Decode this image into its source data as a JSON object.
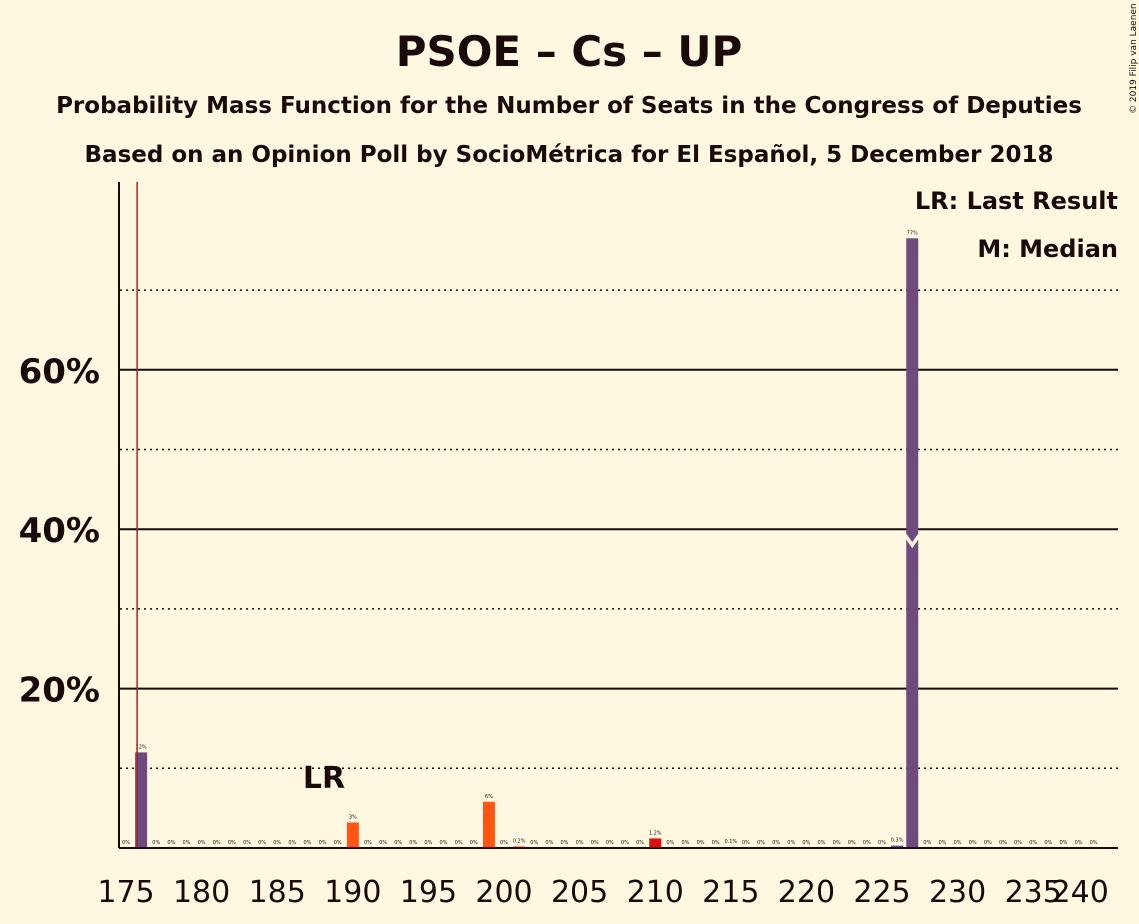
{
  "colors": {
    "background": "#FFF8E1",
    "text": "#1a0a0a",
    "bar_majority": "#6E4A7E",
    "bar_orange": "#FF5511",
    "bar_red": "#E01010",
    "last_result_line": "#B02020"
  },
  "chart_data": {
    "type": "bar",
    "title": "PSOE – Cs – UP",
    "subtitle1": "Probability Mass Function for the Number of Seats in the Congress of Deputies",
    "subtitle2": "Based on an Opinion Poll by SocioMétrica for El Español, 5 December 2018",
    "copyright": "© 2019 Filip van Laenen",
    "legend": {
      "last_result": "LR: Last Result",
      "median": "M: Median",
      "placement": "top-right"
    },
    "xlim": [
      175,
      240
    ],
    "ylim": [
      0,
      83
    ],
    "x_ticks": [
      175,
      180,
      185,
      190,
      195,
      200,
      205,
      210,
      215,
      220,
      225,
      230,
      235,
      240
    ],
    "y_ticks": [
      {
        "value": 20,
        "label": "20%"
      },
      {
        "value": 40,
        "label": "40%"
      },
      {
        "value": 60,
        "label": "60%"
      }
    ],
    "minor_gridlines": [
      10,
      30,
      50,
      70
    ],
    "last_result": {
      "seat": 176,
      "label": "LR"
    },
    "median": {
      "seat": 227,
      "value": 38
    },
    "bars": [
      {
        "seat": 175,
        "value": 0,
        "label": "0%",
        "color": "majority"
      },
      {
        "seat": 176,
        "value": 12,
        "label": "12%",
        "color": "majority"
      },
      {
        "seat": 177,
        "value": 0,
        "label": "0%",
        "color": "majority"
      },
      {
        "seat": 178,
        "value": 0,
        "label": "0%",
        "color": "majority"
      },
      {
        "seat": 179,
        "value": 0,
        "label": "0%",
        "color": "majority"
      },
      {
        "seat": 180,
        "value": 0,
        "label": "0%",
        "color": "majority"
      },
      {
        "seat": 181,
        "value": 0,
        "label": "0%",
        "color": "majority"
      },
      {
        "seat": 182,
        "value": 0,
        "label": "0%",
        "color": "majority"
      },
      {
        "seat": 183,
        "value": 0,
        "label": "0%",
        "color": "majority"
      },
      {
        "seat": 184,
        "value": 0,
        "label": "0%",
        "color": "majority"
      },
      {
        "seat": 185,
        "value": 0,
        "label": "0%",
        "color": "majority"
      },
      {
        "seat": 186,
        "value": 0,
        "label": "0%",
        "color": "majority"
      },
      {
        "seat": 187,
        "value": 0,
        "label": "0%",
        "color": "majority"
      },
      {
        "seat": 188,
        "value": 0,
        "label": "0%",
        "color": "majority"
      },
      {
        "seat": 189,
        "value": 0,
        "label": "0%",
        "color": "majority"
      },
      {
        "seat": 190,
        "value": 3.2,
        "label": "3%",
        "color": "orange"
      },
      {
        "seat": 191,
        "value": 0,
        "label": "0%",
        "color": "orange"
      },
      {
        "seat": 192,
        "value": 0,
        "label": "0%",
        "color": "orange"
      },
      {
        "seat": 193,
        "value": 0,
        "label": "0%",
        "color": "orange"
      },
      {
        "seat": 194,
        "value": 0,
        "label": "0%",
        "color": "orange"
      },
      {
        "seat": 195,
        "value": 0,
        "label": "0%",
        "color": "orange"
      },
      {
        "seat": 196,
        "value": 0,
        "label": "0%",
        "color": "orange"
      },
      {
        "seat": 197,
        "value": 0,
        "label": "0%",
        "color": "orange"
      },
      {
        "seat": 198,
        "value": 0,
        "label": "0%",
        "color": "orange"
      },
      {
        "seat": 199,
        "value": 5.8,
        "label": "6%",
        "color": "orange"
      },
      {
        "seat": 200,
        "value": 0,
        "label": "0%",
        "color": "orange"
      },
      {
        "seat": 201,
        "value": 0.2,
        "label": "0.2%",
        "color": "orange"
      },
      {
        "seat": 202,
        "value": 0,
        "label": "0%",
        "color": "orange"
      },
      {
        "seat": 203,
        "value": 0,
        "label": "0%",
        "color": "orange"
      },
      {
        "seat": 204,
        "value": 0,
        "label": "0%",
        "color": "orange"
      },
      {
        "seat": 205,
        "value": 0,
        "label": "0%",
        "color": "orange"
      },
      {
        "seat": 206,
        "value": 0,
        "label": "0%",
        "color": "orange"
      },
      {
        "seat": 207,
        "value": 0,
        "label": "0%",
        "color": "orange"
      },
      {
        "seat": 208,
        "value": 0,
        "label": "0%",
        "color": "orange"
      },
      {
        "seat": 209,
        "value": 0,
        "label": "0%",
        "color": "orange"
      },
      {
        "seat": 210,
        "value": 1.2,
        "label": "1.2%",
        "color": "red"
      },
      {
        "seat": 211,
        "value": 0,
        "label": "0%",
        "color": "red"
      },
      {
        "seat": 212,
        "value": 0,
        "label": "0%",
        "color": "red"
      },
      {
        "seat": 213,
        "value": 0,
        "label": "0%",
        "color": "red"
      },
      {
        "seat": 214,
        "value": 0,
        "label": "0%",
        "color": "red"
      },
      {
        "seat": 215,
        "value": 0.1,
        "label": "0.1%",
        "color": "red"
      },
      {
        "seat": 216,
        "value": 0,
        "label": "0%",
        "color": "red"
      },
      {
        "seat": 217,
        "value": 0,
        "label": "0%",
        "color": "red"
      },
      {
        "seat": 218,
        "value": 0,
        "label": "0%",
        "color": "red"
      },
      {
        "seat": 219,
        "value": 0,
        "label": "0%",
        "color": "red"
      },
      {
        "seat": 220,
        "value": 0,
        "label": "0%",
        "color": "red"
      },
      {
        "seat": 221,
        "value": 0,
        "label": "0%",
        "color": "red"
      },
      {
        "seat": 222,
        "value": 0,
        "label": "0%",
        "color": "red"
      },
      {
        "seat": 223,
        "value": 0,
        "label": "0%",
        "color": "red"
      },
      {
        "seat": 224,
        "value": 0,
        "label": "0%",
        "color": "red"
      },
      {
        "seat": 225,
        "value": 0,
        "label": "0%",
        "color": "red"
      },
      {
        "seat": 226,
        "value": 0.3,
        "label": "0.3%",
        "color": "majority"
      },
      {
        "seat": 227,
        "value": 76.5,
        "label": "77%",
        "color": "majority"
      },
      {
        "seat": 228,
        "value": 0,
        "label": "0%",
        "color": "majority"
      },
      {
        "seat": 229,
        "value": 0,
        "label": "0%",
        "color": "majority"
      },
      {
        "seat": 230,
        "value": 0,
        "label": "0%",
        "color": "majority"
      },
      {
        "seat": 231,
        "value": 0,
        "label": "0%",
        "color": "majority"
      },
      {
        "seat": 232,
        "value": 0,
        "label": "0%",
        "color": "majority"
      },
      {
        "seat": 233,
        "value": 0,
        "label": "0%",
        "color": "majority"
      },
      {
        "seat": 234,
        "value": 0,
        "label": "0%",
        "color": "majority"
      },
      {
        "seat": 235,
        "value": 0,
        "label": "0%",
        "color": "majority"
      },
      {
        "seat": 236,
        "value": 0,
        "label": "0%",
        "color": "majority"
      },
      {
        "seat": 237,
        "value": 0,
        "label": "0%",
        "color": "majority"
      },
      {
        "seat": 238,
        "value": 0,
        "label": "0%",
        "color": "majority"
      },
      {
        "seat": 239,
        "value": 0,
        "label": "0%",
        "color": "majority"
      }
    ]
  }
}
